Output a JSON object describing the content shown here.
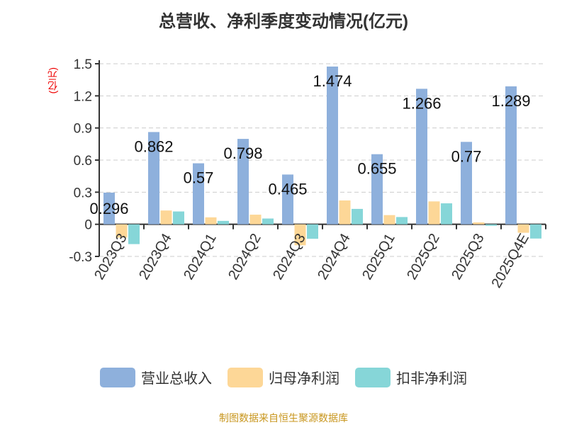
{
  "chart_data": {
    "type": "bar",
    "title": "总营收、净利季度变动情况(亿元)",
    "ylabel": "(亿元)",
    "ylim": [
      -0.3,
      1.5
    ],
    "yticks": [
      "-0.3",
      "0",
      "0.3",
      "0.6",
      "0.9",
      "1.2",
      "1.5"
    ],
    "grid": true,
    "legend_position": "bottom",
    "categories": [
      "2023Q3",
      "2023Q4",
      "2024Q1",
      "2024Q2",
      "2024Q3",
      "2024Q4",
      "2025Q1",
      "2025Q2",
      "2025Q3",
      "2025Q4E"
    ],
    "series": [
      {
        "name": "营业总收入",
        "color": "#8eb0dc",
        "values": [
          0.296,
          0.862,
          0.57,
          0.798,
          0.465,
          1.474,
          0.655,
          1.266,
          0.77,
          1.289
        ],
        "labels": [
          "0.296",
          "0.862",
          "0.57",
          "0.798",
          "0.465",
          "1.474",
          "0.655",
          "1.266",
          "0.77",
          "1.289"
        ]
      },
      {
        "name": "归母净利润",
        "color": "#fdd797",
        "values": [
          -0.124,
          0.129,
          0.065,
          0.09,
          -0.196,
          0.223,
          0.086,
          0.214,
          0.018,
          -0.079
        ]
      },
      {
        "name": "扣非净利润",
        "color": "#86d6d8",
        "values": [
          -0.185,
          0.12,
          0.032,
          0.054,
          -0.135,
          0.144,
          0.068,
          0.196,
          -0.014,
          -0.133
        ]
      }
    ]
  },
  "source": "制图数据来自恒生聚源数据库"
}
